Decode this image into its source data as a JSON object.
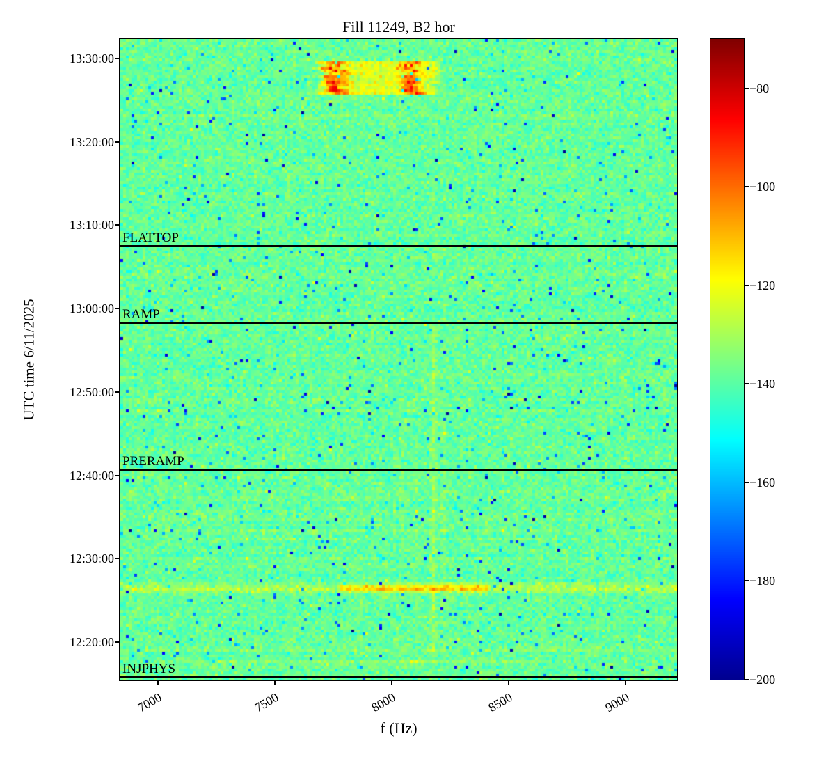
{
  "figure": {
    "background": "#ffffff"
  },
  "chart_data": {
    "type": "heatmap",
    "title": "Fill 11249, B2 hor",
    "xlabel": "f (Hz)",
    "ylabel": "UTC time 6/11/2025",
    "colormap": "jet",
    "colormap_stops": [
      [
        0.0,
        [
          0,
          0,
          143
        ]
      ],
      [
        0.125,
        [
          0,
          0,
          255
        ]
      ],
      [
        0.375,
        [
          0,
          255,
          255
        ]
      ],
      [
        0.625,
        [
          255,
          255,
          0
        ]
      ],
      [
        0.875,
        [
          255,
          0,
          0
        ]
      ],
      [
        1.0,
        [
          128,
          0,
          0
        ]
      ]
    ],
    "xlim": [
      6840,
      9220
    ],
    "x_ticks": [
      {
        "value": 7000,
        "label": "7000"
      },
      {
        "value": 7500,
        "label": "7500"
      },
      {
        "value": 8000,
        "label": "8000"
      },
      {
        "value": 8500,
        "label": "8500"
      },
      {
        "value": 9000,
        "label": "9000"
      }
    ],
    "time_top": "13:32:20",
    "time_bottom": "12:15:30",
    "date": "6/11/2025",
    "y_ticks": [
      {
        "time": "13:30:00",
        "label": "13:30:00"
      },
      {
        "time": "13:20:00",
        "label": "13:20:00"
      },
      {
        "time": "13:10:00",
        "label": "13:10:00"
      },
      {
        "time": "13:00:00",
        "label": "13:00:00"
      },
      {
        "time": "12:50:00",
        "label": "12:50:00"
      },
      {
        "time": "12:40:00",
        "label": "12:40:00"
      },
      {
        "time": "12:30:00",
        "label": "12:30:00"
      },
      {
        "time": "12:20:00",
        "label": "12:20:00"
      }
    ],
    "colorbar": {
      "vmin": -200,
      "vmax": -70,
      "ticks": [
        {
          "value": -80,
          "label": "−80"
        },
        {
          "value": -100,
          "label": "−100"
        },
        {
          "value": -120,
          "label": "−120"
        },
        {
          "value": -140,
          "label": "−140"
        },
        {
          "value": -160,
          "label": "−160"
        },
        {
          "value": -180,
          "label": "−180"
        },
        {
          "value": -200,
          "label": "−200"
        }
      ]
    },
    "noise": {
      "mean_db": -138.5,
      "std_db": 3.9,
      "cold_speckle_prob": 0.022,
      "deep_speckle_prob": 0.004,
      "hot_speckle_prob": 0.012
    },
    "beam_modes": [
      {
        "label": "FLATTOP",
        "time": "13:07:30"
      },
      {
        "label": "RAMP",
        "time": "12:58:20"
      },
      {
        "label": "PRERAMP",
        "time": "12:40:45"
      },
      {
        "label": "INJPHYS",
        "time": "12:15:50"
      }
    ],
    "features": [
      {
        "kind": "band",
        "f0": 7685,
        "f1": 8208,
        "t0": "13:25:30",
        "t1": "13:29:30",
        "amp_db": 16
      },
      {
        "kind": "blob",
        "f_center": 7759,
        "f_sigma": 30,
        "t0": "13:25:30",
        "t1": "13:29:30",
        "amp_db": 26
      },
      {
        "kind": "blob",
        "f_center": 8080,
        "f_sigma": 28,
        "t0": "13:25:30",
        "t1": "13:29:30",
        "amp_db": 26
      },
      {
        "kind": "hstreak",
        "time": "12:26:30",
        "t_sigma_s": 22,
        "f0": 6840,
        "f1": 9220,
        "amp_db": 9
      },
      {
        "kind": "hstreak",
        "time": "12:26:30",
        "t_sigma_s": 18,
        "f0": 7780,
        "f1": 8410,
        "amp_db": 17
      },
      {
        "kind": "vline",
        "f": 8179,
        "f_width": 18,
        "t0": "12:17:40",
        "t1": "12:58:20",
        "amp_db": 7
      },
      {
        "kind": "vline",
        "f": 8223,
        "f_width": 14,
        "t0": "12:17:40",
        "t1": "12:48:00",
        "amp_db": 4.5
      },
      {
        "kind": "vline",
        "f": 8042,
        "f_width": 12,
        "t0": "12:17:40",
        "t1": "12:46:00",
        "amp_db": 3
      },
      {
        "kind": "vline",
        "f": 8110,
        "f_width": 12,
        "t0": "12:17:40",
        "t1": "12:46:00",
        "amp_db": 2.5
      },
      {
        "kind": "hstreak",
        "time": "12:19:05",
        "t_sigma_s": 9,
        "f0": 6840,
        "f1": 9220,
        "amp_db": 4
      },
      {
        "kind": "hstreak",
        "time": "12:17:40",
        "t_sigma_s": 8,
        "f0": 7100,
        "f1": 8650,
        "amp_db": 4
      },
      {
        "kind": "dot",
        "f": 8179,
        "f_sigma": 15,
        "time": "12:40:45",
        "t_sigma_s": 10,
        "amp_db": 16
      },
      {
        "kind": "dot",
        "f": 8100,
        "f_sigma": 12,
        "time": "12:17:40",
        "t_sigma_s": 8,
        "amp_db": 14
      }
    ]
  }
}
